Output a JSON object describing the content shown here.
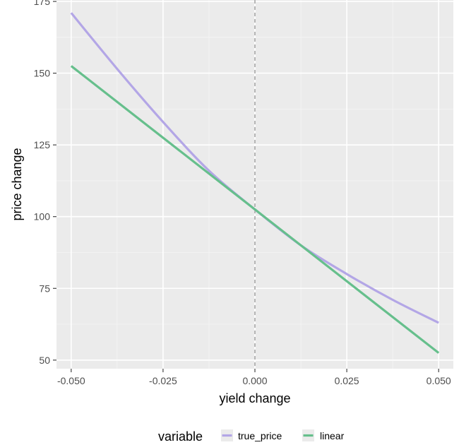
{
  "chart_data": {
    "type": "line",
    "xlabel": "yield change",
    "ylabel": "price change",
    "xlim": [
      -0.054,
      0.054
    ],
    "ylim": [
      47,
      175.5
    ],
    "x_ticks": [
      -0.05,
      -0.025,
      0.0,
      0.025,
      0.05
    ],
    "x_tick_labels": [
      "-0.050",
      "-0.025",
      "0.000",
      "0.025",
      "0.050"
    ],
    "y_ticks": [
      50,
      75,
      100,
      125,
      150,
      175
    ],
    "y_tick_labels": [
      "50",
      "75",
      "100",
      "125",
      "150",
      "175"
    ],
    "grid": true,
    "reference_line": {
      "x": 0.0,
      "style": "dashed",
      "color": "#9a9a9a"
    },
    "series": [
      {
        "name": "true_price",
        "color": "#b3a6e6",
        "x": [
          -0.05,
          -0.0375,
          -0.025,
          -0.0125,
          0.0,
          0.0125,
          0.025,
          0.0375,
          0.05
        ],
        "y": [
          171,
          151.5,
          133,
          116,
          102.5,
          90,
          80,
          71,
          63
        ]
      },
      {
        "name": "linear",
        "color": "#66bf8c",
        "x": [
          -0.05,
          0.05
        ],
        "y": [
          152.5,
          52.5
        ]
      }
    ],
    "legend": {
      "title": "variable",
      "placement": "bottom",
      "entries": [
        "true_price",
        "linear"
      ]
    }
  }
}
